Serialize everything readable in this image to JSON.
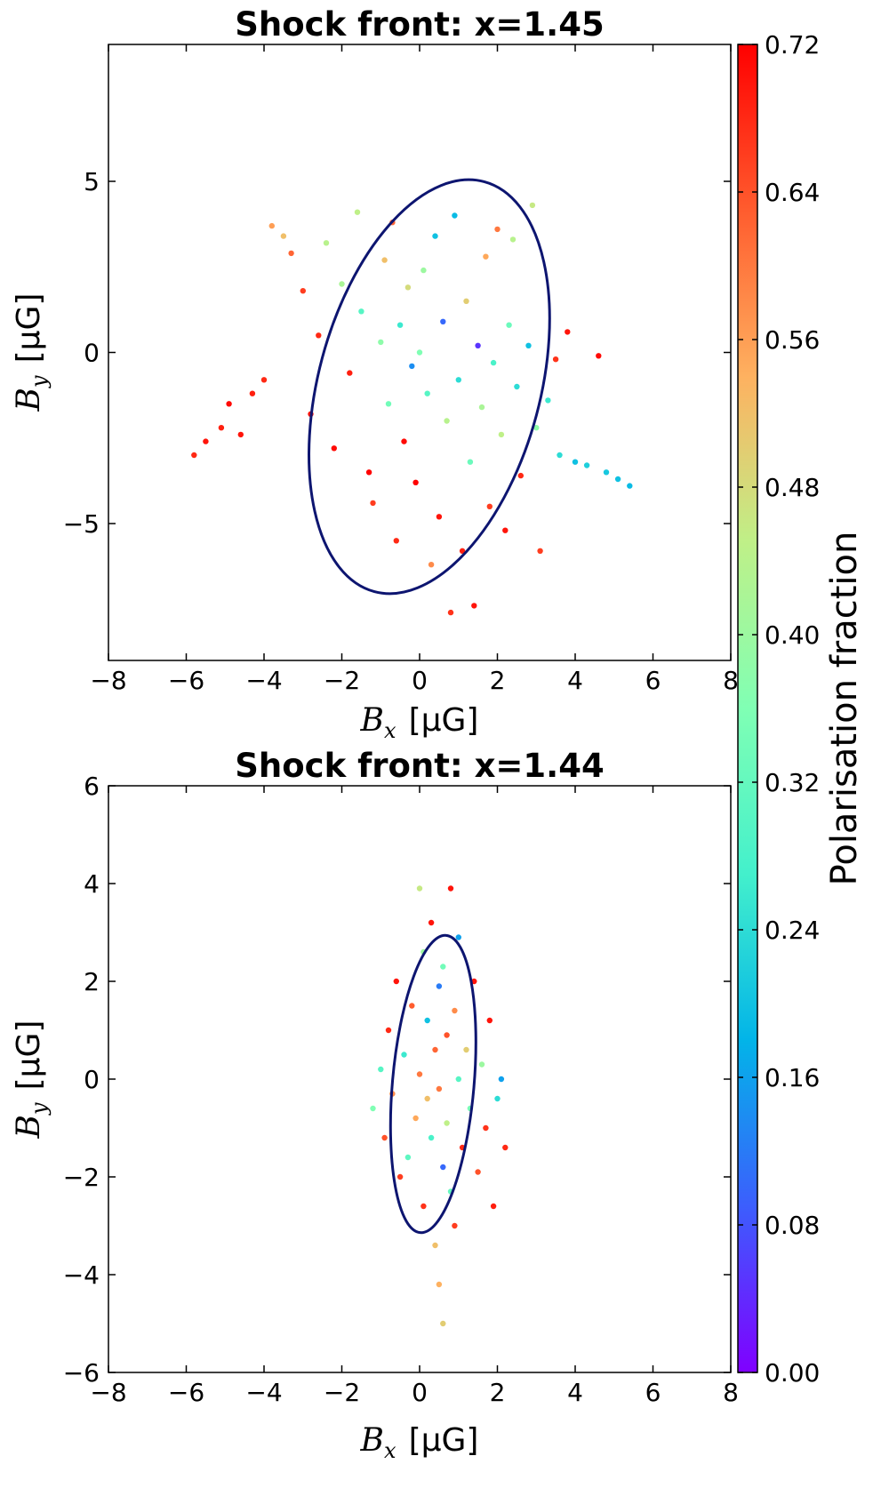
{
  "chart_data": [
    {
      "type": "scatter",
      "title": "Shock front: x=1.45",
      "xlabel_symbol": "B",
      "xlabel_sub": "x",
      "xlabel_unit": "[μG]",
      "ylabel_symbol": "B",
      "ylabel_sub": "y",
      "ylabel_unit": "[μG]",
      "xlim": [
        -8,
        8
      ],
      "ylim": [
        -9,
        9
      ],
      "xticks": [
        -8,
        -6,
        -4,
        -2,
        0,
        2,
        4,
        6,
        8
      ],
      "xtick_labels": [
        "−8",
        "−6",
        "−4",
        "−2",
        "0",
        "2",
        "4",
        "6",
        "8"
      ],
      "yticks": [
        -5,
        0,
        5
      ],
      "ytick_labels": [
        "−5",
        "0",
        "5"
      ],
      "color_variable": "Polarisation fraction",
      "ellipse": {
        "center": [
          0.25,
          -1.0
        ],
        "semi_major": 6.2,
        "semi_minor": 2.85,
        "angle_deg": -15
      },
      "points": [
        [
          -5.8,
          -3.0,
          0.68
        ],
        [
          -5.5,
          -2.6,
          0.7
        ],
        [
          -5.1,
          -2.2,
          0.69
        ],
        [
          -4.9,
          -1.5,
          0.71
        ],
        [
          -4.6,
          -2.4,
          0.7
        ],
        [
          -4.3,
          -1.2,
          0.69
        ],
        [
          -4.0,
          -0.8,
          0.68
        ],
        [
          -3.8,
          3.7,
          0.56
        ],
        [
          -3.5,
          3.4,
          0.52
        ],
        [
          -3.3,
          2.9,
          0.62
        ],
        [
          -3.0,
          1.8,
          0.66
        ],
        [
          -2.8,
          -1.8,
          0.7
        ],
        [
          -2.6,
          0.5,
          0.68
        ],
        [
          -2.4,
          3.2,
          0.44
        ],
        [
          -2.2,
          -2.8,
          0.71
        ],
        [
          -2.0,
          2.0,
          0.42
        ],
        [
          -1.8,
          -0.6,
          0.69
        ],
        [
          -1.6,
          4.1,
          0.45
        ],
        [
          -1.5,
          1.2,
          0.3
        ],
        [
          -1.3,
          -3.5,
          0.72
        ],
        [
          -1.2,
          -4.4,
          0.66
        ],
        [
          -1.0,
          0.3,
          0.38
        ],
        [
          -0.9,
          2.7,
          0.52
        ],
        [
          -0.8,
          -1.5,
          0.34
        ],
        [
          -0.7,
          3.8,
          0.62
        ],
        [
          -0.6,
          -5.5,
          0.68
        ],
        [
          -0.5,
          0.8,
          0.26
        ],
        [
          -0.4,
          -2.6,
          0.71
        ],
        [
          -0.3,
          1.9,
          0.48
        ],
        [
          -0.2,
          -0.4,
          0.14
        ],
        [
          -0.1,
          -3.8,
          0.72
        ],
        [
          0.0,
          0.0,
          0.36
        ],
        [
          0.1,
          2.4,
          0.4
        ],
        [
          0.2,
          -1.2,
          0.3
        ],
        [
          0.3,
          -6.2,
          0.58
        ],
        [
          0.4,
          3.4,
          0.2
        ],
        [
          0.5,
          -4.8,
          0.7
        ],
        [
          0.6,
          0.9,
          0.1
        ],
        [
          0.7,
          -2.0,
          0.44
        ],
        [
          0.8,
          -7.6,
          0.67
        ],
        [
          0.9,
          4.0,
          0.19
        ],
        [
          1.0,
          -0.8,
          0.24
        ],
        [
          1.1,
          -5.8,
          0.69
        ],
        [
          1.2,
          1.5,
          0.5
        ],
        [
          1.3,
          -3.2,
          0.33
        ],
        [
          1.4,
          -7.4,
          0.7
        ],
        [
          1.5,
          0.2,
          0.05
        ],
        [
          1.6,
          -1.6,
          0.42
        ],
        [
          1.7,
          2.8,
          0.55
        ],
        [
          1.8,
          -4.5,
          0.66
        ],
        [
          1.9,
          -0.3,
          0.28
        ],
        [
          2.0,
          3.6,
          0.6
        ],
        [
          2.1,
          -2.4,
          0.45
        ],
        [
          2.2,
          -5.2,
          0.7
        ],
        [
          2.3,
          0.8,
          0.33
        ],
        [
          2.4,
          3.3,
          0.44
        ],
        [
          2.5,
          -1.0,
          0.24
        ],
        [
          2.6,
          -3.6,
          0.68
        ],
        [
          2.8,
          0.2,
          0.2
        ],
        [
          2.9,
          4.3,
          0.46
        ],
        [
          3.0,
          -2.2,
          0.38
        ],
        [
          3.1,
          -5.8,
          0.66
        ],
        [
          3.3,
          -1.4,
          0.26
        ],
        [
          3.5,
          -0.2,
          0.67
        ],
        [
          3.6,
          -3.0,
          0.24
        ],
        [
          3.8,
          0.6,
          0.7
        ],
        [
          4.0,
          -3.2,
          0.2
        ],
        [
          4.3,
          -3.3,
          0.22
        ],
        [
          4.6,
          -0.1,
          0.71
        ],
        [
          4.8,
          -3.5,
          0.21
        ],
        [
          5.1,
          -3.7,
          0.2
        ],
        [
          5.4,
          -3.9,
          0.19
        ]
      ]
    },
    {
      "type": "scatter",
      "title": "Shock front: x=1.44",
      "xlabel_symbol": "B",
      "xlabel_sub": "x",
      "xlabel_unit": "[μG]",
      "ylabel_symbol": "B",
      "ylabel_sub": "y",
      "ylabel_unit": "[μG]",
      "xlim": [
        -8,
        8
      ],
      "ylim": [
        -6,
        6
      ],
      "xticks": [
        -8,
        -6,
        -4,
        -2,
        0,
        2,
        4,
        6,
        8
      ],
      "xtick_labels": [
        "−8",
        "−6",
        "−4",
        "−2",
        "0",
        "2",
        "4",
        "6",
        "8"
      ],
      "yticks": [
        -6,
        -4,
        -2,
        0,
        2,
        4,
        6
      ],
      "ytick_labels": [
        "−6",
        "−4",
        "−2",
        "0",
        "2",
        "4",
        "6"
      ],
      "color_variable": "Polarisation fraction",
      "ellipse": {
        "center": [
          0.35,
          -0.1
        ],
        "semi_major": 3.05,
        "semi_minor": 1.05,
        "angle_deg": -5
      },
      "points": [
        [
          -1.2,
          -0.6,
          0.36
        ],
        [
          -1.0,
          0.2,
          0.3
        ],
        [
          -0.9,
          -1.2,
          0.64
        ],
        [
          -0.8,
          1.0,
          0.68
        ],
        [
          -0.7,
          -0.3,
          0.58
        ],
        [
          -0.6,
          2.0,
          0.7
        ],
        [
          -0.5,
          -2.0,
          0.66
        ],
        [
          -0.4,
          0.5,
          0.26
        ],
        [
          -0.3,
          -1.6,
          0.31
        ],
        [
          -0.2,
          1.5,
          0.63
        ],
        [
          -0.1,
          -0.8,
          0.55
        ],
        [
          0.0,
          3.9,
          0.46
        ],
        [
          0.0,
          0.1,
          0.6
        ],
        [
          0.1,
          2.6,
          0.4
        ],
        [
          0.1,
          -2.6,
          0.67
        ],
        [
          0.2,
          1.2,
          0.2
        ],
        [
          0.2,
          -0.4,
          0.52
        ],
        [
          0.3,
          3.2,
          0.7
        ],
        [
          0.3,
          -1.2,
          0.28
        ],
        [
          0.4,
          0.6,
          0.62
        ],
        [
          0.4,
          -3.4,
          0.52
        ],
        [
          0.5,
          1.9,
          0.12
        ],
        [
          0.5,
          -0.2,
          0.6
        ],
        [
          0.5,
          -4.2,
          0.54
        ],
        [
          0.6,
          2.3,
          0.34
        ],
        [
          0.6,
          -1.8,
          0.1
        ],
        [
          0.6,
          -5.0,
          0.5
        ],
        [
          0.7,
          0.9,
          0.64
        ],
        [
          0.7,
          -0.9,
          0.45
        ],
        [
          0.8,
          3.9,
          0.7
        ],
        [
          0.8,
          -2.3,
          0.32
        ],
        [
          0.9,
          1.4,
          0.58
        ],
        [
          0.9,
          -3.0,
          0.66
        ],
        [
          1.0,
          0.0,
          0.3
        ],
        [
          1.0,
          2.9,
          0.16
        ],
        [
          1.1,
          -1.4,
          0.68
        ],
        [
          1.2,
          0.6,
          0.5
        ],
        [
          1.3,
          -0.6,
          0.35
        ],
        [
          1.4,
          2.0,
          0.7
        ],
        [
          1.5,
          -1.9,
          0.64
        ],
        [
          1.6,
          0.3,
          0.4
        ],
        [
          1.7,
          -1.0,
          0.67
        ],
        [
          1.8,
          1.2,
          0.7
        ],
        [
          1.9,
          -2.6,
          0.69
        ],
        [
          2.0,
          -0.4,
          0.24
        ],
        [
          2.1,
          0.0,
          0.16
        ],
        [
          2.2,
          -1.4,
          0.68
        ]
      ]
    }
  ],
  "colorbar": {
    "label": "Polarisation fraction",
    "vmin": 0.0,
    "vmax": 0.72,
    "ticks": [
      "0.00",
      "0.08",
      "0.16",
      "0.24",
      "0.32",
      "0.40",
      "0.48",
      "0.56",
      "0.64",
      "0.72"
    ],
    "colormap": "rainbow",
    "stops": [
      "#8000ff",
      "#3c5efd",
      "#02b4e8",
      "#43f0cc",
      "#80ffb4",
      "#bff088",
      "#feb160",
      "#ff5c2e",
      "#ff0000"
    ]
  },
  "colors": {
    "ellipse": "#0d1570",
    "axis": "#000000"
  }
}
